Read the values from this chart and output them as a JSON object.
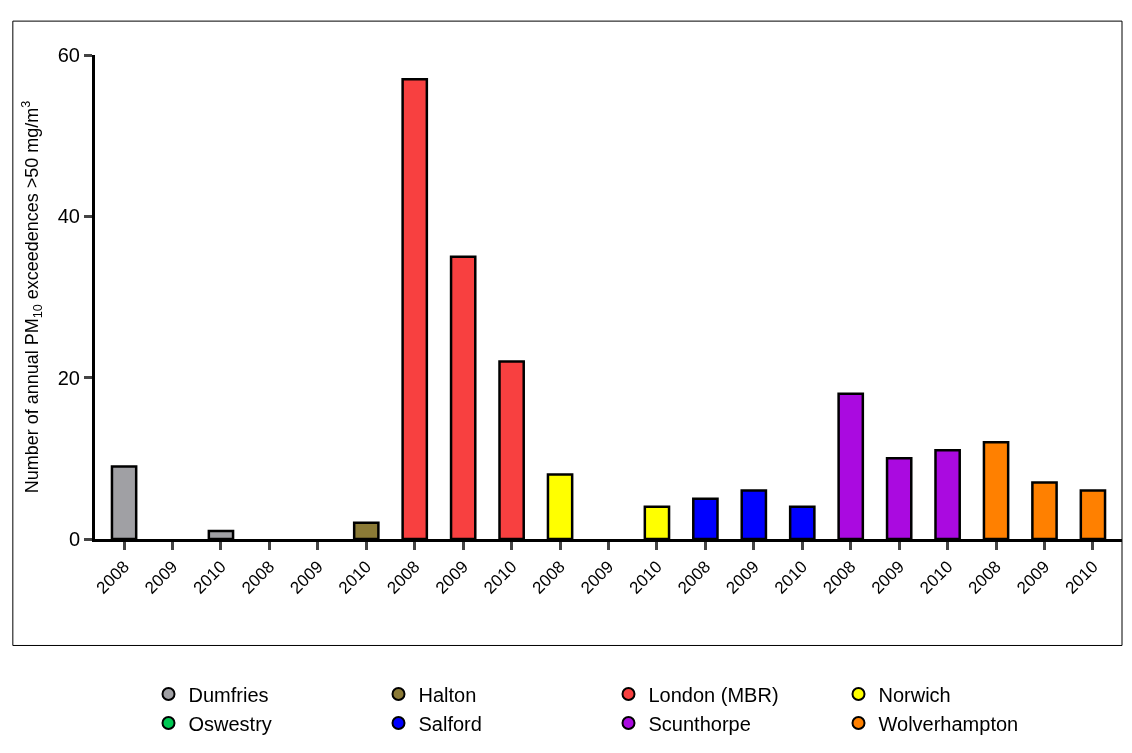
{
  "chart_data": {
    "type": "bar",
    "ylabel": "Number of annual PM$_{10}$ exceedences >50 mg/m$^{3}$",
    "categories": [
      "2008",
      "2009",
      "2010",
      "2008",
      "2009",
      "2010",
      "2008",
      "2009",
      "2010",
      "2008",
      "2009",
      "2010",
      "2008",
      "2009",
      "2010",
      "2008",
      "2009",
      "2010",
      "2008",
      "2009",
      "2010"
    ],
    "series": [
      {
        "name": "Dumfries",
        "color": "#a0a0a4",
        "values": [
          9,
          null,
          1,
          null,
          null,
          null,
          null,
          null,
          null,
          null,
          null,
          null,
          null,
          null,
          null,
          null,
          null,
          null,
          null,
          null,
          null
        ]
      },
      {
        "name": "Halton",
        "color": "#8b7a36",
        "values": [
          null,
          null,
          null,
          null,
          null,
          2,
          null,
          null,
          null,
          null,
          null,
          null,
          null,
          null,
          null,
          null,
          null,
          null,
          null,
          null,
          null
        ]
      },
      {
        "name": "London (MBR)",
        "color": "#f84040",
        "values": [
          null,
          null,
          null,
          null,
          null,
          null,
          57,
          35,
          22,
          null,
          null,
          null,
          null,
          null,
          null,
          null,
          null,
          null,
          null,
          null,
          null
        ]
      },
      {
        "name": "Norwich",
        "color": "#ffff00",
        "values": [
          null,
          null,
          null,
          null,
          null,
          null,
          null,
          null,
          null,
          8,
          null,
          4,
          null,
          null,
          null,
          null,
          null,
          null,
          null,
          null,
          null
        ]
      },
      {
        "name": "Oswestry",
        "color": "#00c853",
        "values": [
          null,
          null,
          null,
          null,
          null,
          null,
          null,
          null,
          null,
          null,
          null,
          null,
          null,
          null,
          null,
          null,
          null,
          null,
          null,
          null,
          null
        ]
      },
      {
        "name": "Salford",
        "color": "#0000ff",
        "values": [
          null,
          null,
          null,
          null,
          null,
          null,
          null,
          null,
          null,
          null,
          null,
          null,
          5,
          6,
          4,
          null,
          null,
          null,
          null,
          null,
          null
        ]
      },
      {
        "name": "Scunthorpe",
        "color": "#aa0ae0",
        "values": [
          null,
          null,
          null,
          null,
          null,
          null,
          null,
          null,
          null,
          null,
          null,
          null,
          null,
          null,
          null,
          18,
          10,
          11,
          null,
          null,
          null
        ]
      },
      {
        "name": "Wolverhampton",
        "color": "#ff8000",
        "values": [
          null,
          null,
          null,
          null,
          null,
          null,
          null,
          null,
          null,
          null,
          null,
          null,
          null,
          null,
          null,
          null,
          null,
          null,
          12,
          7,
          6
        ]
      }
    ],
    "ylim": [
      0,
      60
    ],
    "yticks": [
      0,
      20,
      40,
      60
    ],
    "legend": "bottom"
  }
}
